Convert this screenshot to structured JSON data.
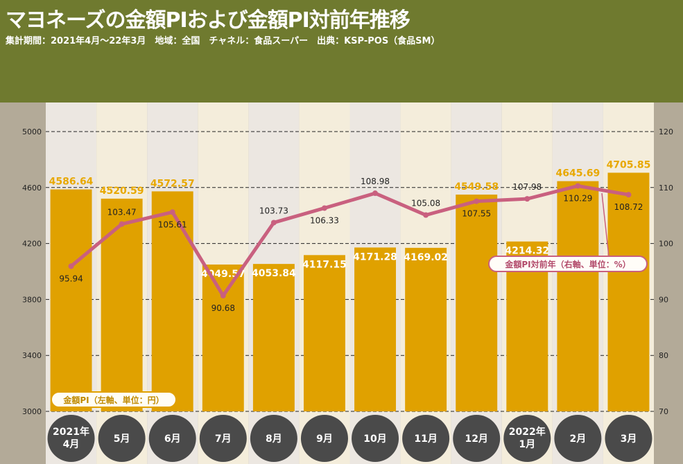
{
  "header": {
    "title": "マヨネーズの金額PIおよび金額PI対前年推移",
    "subtitle": "集計期間：2021年4月～22年3月　地域：全国　チャネル：食品スーパー　出典：KSP-POS（食品SM）"
  },
  "colors": {
    "header_bg": "#6f7a2f",
    "frame_bg": "#b3aa98",
    "bar": "#e0a100",
    "bar_label": "#e8a800",
    "line": "#c9607f",
    "col_light": "#ece7e1",
    "col_cream": "#f4eddb",
    "month_circle": "#4a4a4a"
  },
  "chart_data": {
    "type": "bar+line",
    "categories": [
      "2021年\n4月",
      "5月",
      "6月",
      "7月",
      "8月",
      "9月",
      "10月",
      "11月",
      "12月",
      "2022年\n1月",
      "2月",
      "3月"
    ],
    "series": [
      {
        "name": "金額PI（左軸、単位：円）",
        "type": "bar",
        "axis": "left",
        "values": [
          4586.64,
          4520.59,
          4572.57,
          4049.57,
          4053.84,
          4117.15,
          4171.28,
          4169.02,
          4549.58,
          4214.32,
          4645.69,
          4705.85
        ],
        "labels": [
          "4586.64",
          "4520.59",
          "4572.57",
          "4049.57",
          "4053.84",
          "4117.15",
          "4171.28",
          "4169.02",
          "4549.58",
          "4214.32",
          "4645.69",
          "4705.85"
        ]
      },
      {
        "name": "金額PI対前年（右軸、単位：%）",
        "type": "line",
        "axis": "right",
        "values": [
          95.94,
          103.47,
          105.61,
          90.68,
          103.73,
          106.33,
          108.98,
          105.08,
          107.55,
          107.98,
          110.29,
          108.72
        ],
        "labels": [
          "95.94",
          "103.47",
          "105.61",
          "90.68",
          "103.73",
          "106.33",
          "108.98",
          "105.08",
          "107.55",
          "107.98",
          "110.29",
          "108.72"
        ]
      }
    ],
    "left_axis": {
      "range": [
        3000,
        5000
      ],
      "ticks": [
        "3000",
        "3400",
        "3800",
        "4200",
        "4600",
        "5000"
      ]
    },
    "right_axis": {
      "range": [
        70,
        120
      ],
      "ticks": [
        "70",
        "80",
        "90",
        "100",
        "110",
        "120"
      ]
    },
    "grid": true
  }
}
